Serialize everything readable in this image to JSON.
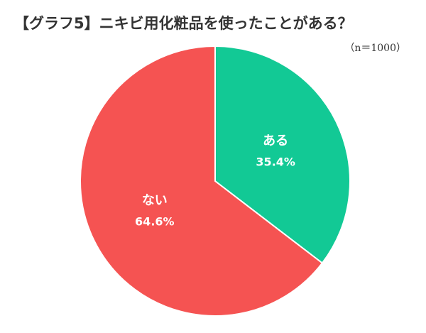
{
  "chart_data": {
    "type": "pie",
    "title": "【グラフ5】ニキビ用化粧品を使ったことがある？",
    "subtitle": "（n＝1000）",
    "categories": [
      "ある",
      "ない"
    ],
    "values": [
      35.4,
      64.6
    ],
    "value_labels": [
      "35.4%",
      "64.6%"
    ],
    "colors": [
      "#12c995",
      "#f55352"
    ]
  }
}
